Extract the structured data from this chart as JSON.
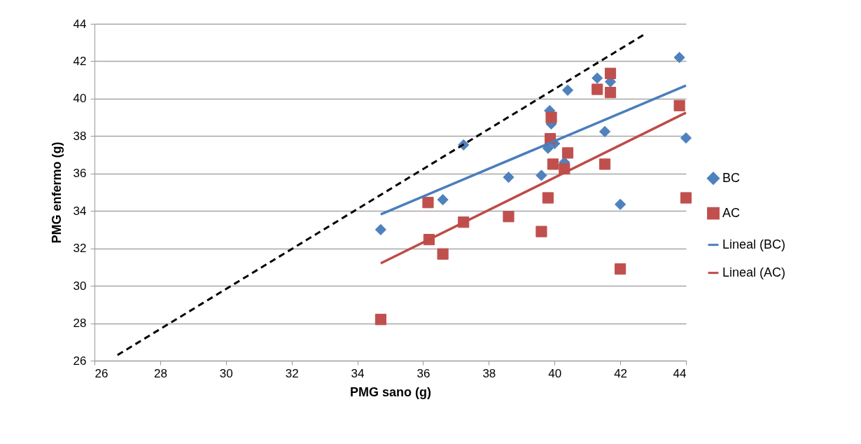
{
  "chart_data": {
    "type": "scatter",
    "xlabel": "PMG sano (g)",
    "ylabel": "PMG enfermo (g)",
    "xlim": [
      26,
      44
    ],
    "ylim": [
      26,
      44
    ],
    "xticks": [
      26,
      28,
      30,
      32,
      34,
      36,
      38,
      40,
      42,
      44
    ],
    "yticks": [
      26,
      28,
      30,
      32,
      34,
      36,
      38,
      40,
      42,
      44
    ],
    "grid": "y",
    "legend": "right",
    "series": [
      {
        "name": "BC",
        "marker": "diamond",
        "color": "#4f81bd",
        "x": [
          34.71,
          36.16,
          36.6,
          37.23,
          38.6,
          39.6,
          39.85,
          39.9,
          39.8,
          40.0,
          40.3,
          40.4,
          41.3,
          41.7,
          41.53,
          42.0,
          43.8,
          44.0
        ],
        "values": [
          33.0,
          null,
          34.6,
          37.53,
          35.8,
          35.9,
          39.36,
          38.65,
          37.35,
          37.6,
          36.6,
          40.45,
          41.1,
          40.9,
          38.24,
          34.35,
          42.2,
          37.9
        ]
      },
      {
        "name": "AC",
        "marker": "square",
        "color": "#c0504d",
        "x": [
          34.71,
          36.15,
          36.18,
          36.6,
          37.23,
          38.6,
          39.6,
          39.8,
          39.9,
          39.87,
          39.95,
          40.3,
          40.4,
          41.3,
          41.7,
          41.7,
          41.53,
          42.0,
          43.8,
          44.0
        ],
        "values": [
          28.2,
          34.45,
          32.47,
          31.7,
          33.4,
          33.7,
          32.9,
          34.7,
          39.0,
          37.86,
          36.5,
          36.25,
          37.1,
          40.5,
          41.35,
          40.33,
          36.5,
          30.9,
          39.63,
          34.7
        ]
      },
      {
        "name": "Lineal (BC)",
        "type": "line",
        "color": "#4a7ebb",
        "x": [
          34.71,
          44.0
        ],
        "values": [
          33.82,
          40.7
        ]
      },
      {
        "name": "Lineal (AC)",
        "type": "line",
        "color": "#be4b48",
        "x": [
          34.71,
          44.0
        ],
        "values": [
          31.2,
          39.25
        ]
      },
      {
        "type": "line",
        "line_style": "dashed",
        "color": "#000000",
        "x": [
          26.7,
          42.7
        ],
        "values": [
          26.3,
          43.4
        ]
      }
    ]
  }
}
